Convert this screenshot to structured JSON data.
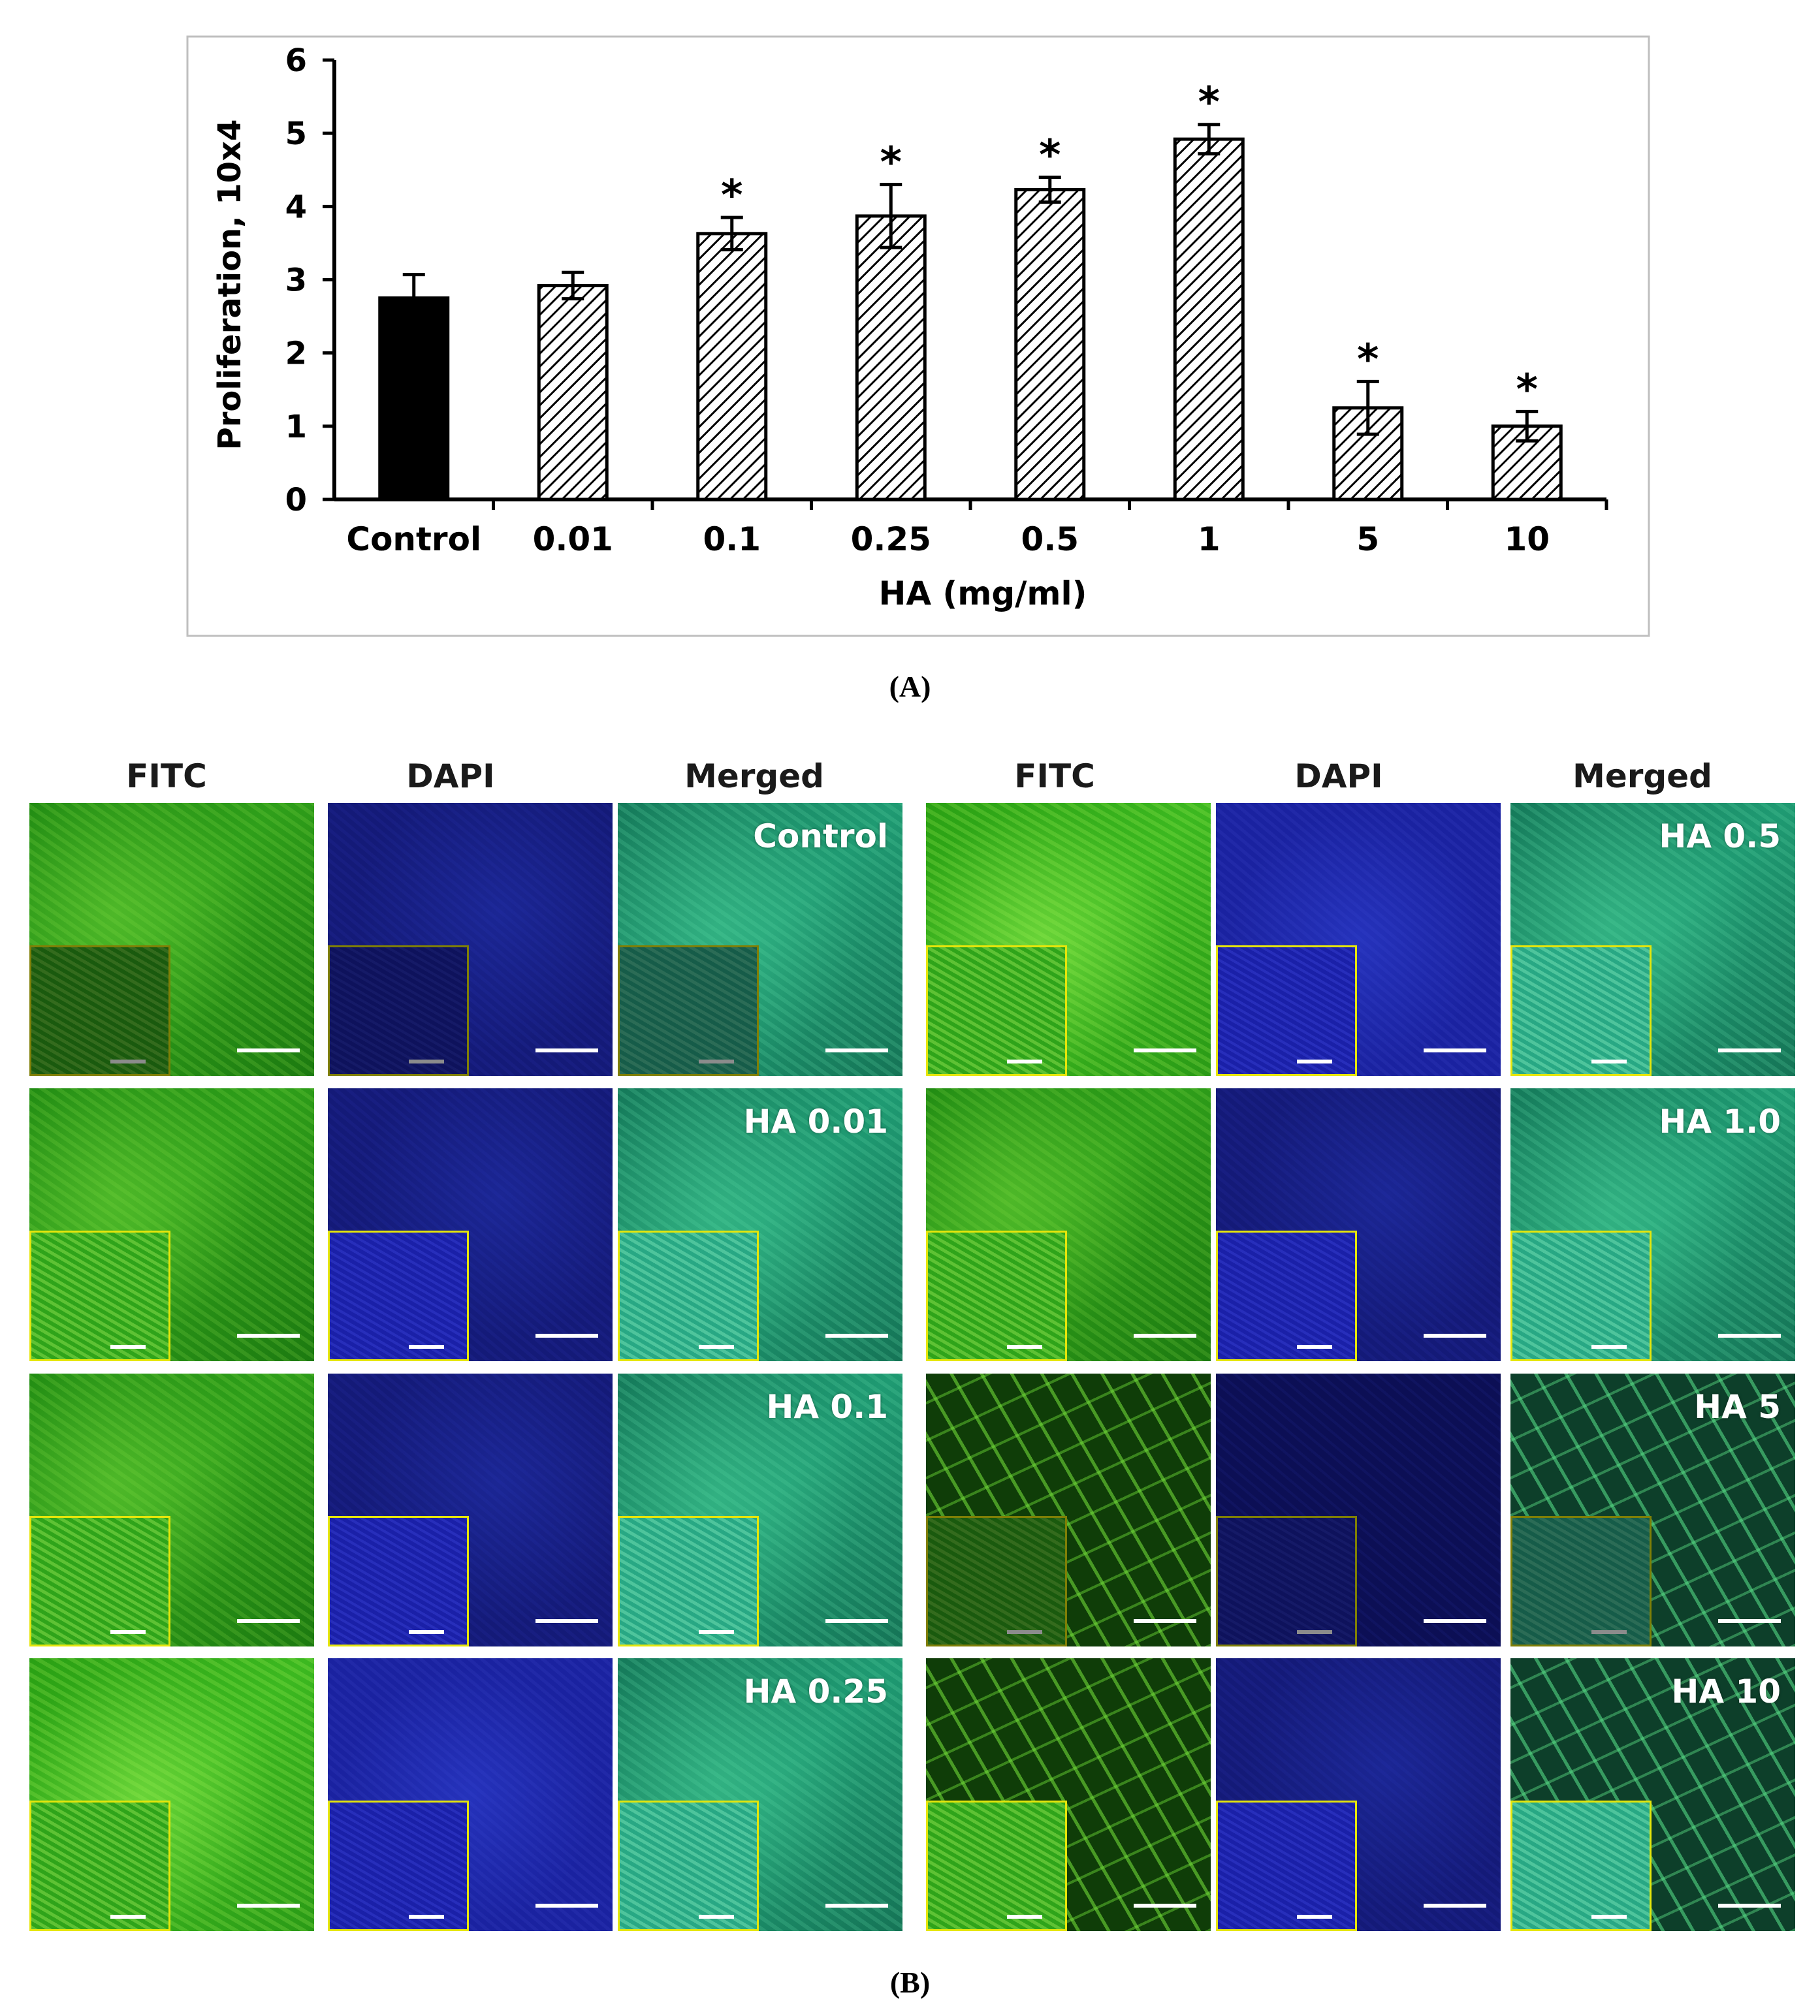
{
  "chart_data": {
    "type": "bar",
    "title": "",
    "xlabel": "HA (mg/ml)",
    "ylabel": "Proliferation, 10x4",
    "ylim": [
      0,
      6
    ],
    "yticks": [
      "0",
      "1",
      "2",
      "3",
      "4",
      "5",
      "6"
    ],
    "categories": [
      "Control",
      "0.01",
      "0.1",
      "0.25",
      "0.5",
      "1",
      "5",
      "10"
    ],
    "values": [
      2.75,
      2.92,
      3.63,
      3.87,
      4.23,
      4.92,
      1.25,
      1.0
    ],
    "errors": [
      0.32,
      0.18,
      0.22,
      0.43,
      0.17,
      0.2,
      0.36,
      0.2
    ],
    "significance": [
      "",
      "",
      "*",
      "*",
      "*",
      "*",
      "*",
      "*"
    ],
    "fill": [
      "solid",
      "hatched",
      "hatched",
      "hatched",
      "hatched",
      "hatched",
      "hatched",
      "hatched"
    ],
    "colors": {
      "solid": "#000000",
      "hatch": "#000000",
      "background": "#ffffff",
      "frame": "#bfbfbf"
    }
  },
  "captions": {
    "panel_a": "(A)",
    "panel_b": "(B)"
  },
  "microscopy": {
    "columns": [
      "FITC",
      "DAPI",
      "Merged",
      "FITC",
      "DAPI",
      "Merged"
    ],
    "labels_left": [
      "Control",
      "HA 0.01",
      "HA 0.1",
      "HA 0.25"
    ],
    "labels_right": [
      "HA 0.5",
      "HA 1.0",
      "HA 5",
      "HA 10"
    ],
    "colors": {
      "fitc": "#2fa01a",
      "dapi": "#141a88",
      "merged": "#1c8c68",
      "inset_border": "#e6e60a",
      "scalebar": "#ffffff"
    }
  }
}
